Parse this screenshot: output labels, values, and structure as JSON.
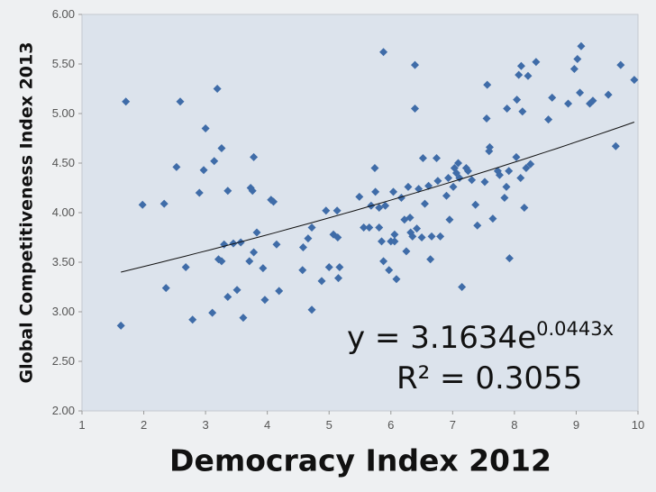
{
  "chart_data": {
    "type": "scatter",
    "x_label": "Democracy Index 2012",
    "y_label": "Global Competitiveness Index 2013",
    "equation": "y = 3.1634e",
    "equation_exponent": "0.0443x",
    "r_squared_label": "R² = 0.3055",
    "trendline": {
      "a": 3.1634,
      "b": 0.0443
    },
    "color": "#3f6ca8",
    "xlim": [
      1,
      10
    ],
    "ylim": [
      2,
      6
    ],
    "xticks": [
      1,
      2,
      3,
      4,
      5,
      6,
      7,
      8,
      9,
      10
    ],
    "yticks": [
      {
        "value": 2,
        "label": "2.00"
      },
      {
        "value": 2.5,
        "label": "2.50"
      },
      {
        "value": 3,
        "label": "3.00"
      },
      {
        "value": 3.5,
        "label": "3.50"
      },
      {
        "value": 4,
        "label": "4.00"
      },
      {
        "value": 4.5,
        "label": "4.50"
      },
      {
        "value": 5,
        "label": "5.00"
      },
      {
        "value": 5.5,
        "label": "5.50"
      },
      {
        "value": 6,
        "label": "6.00"
      }
    ],
    "x": [
      1.63,
      1.71,
      1.98,
      2.33,
      2.36,
      2.53,
      2.59,
      2.68,
      2.79,
      2.9,
      2.97,
      3.0,
      3.11,
      3.14,
      3.19,
      3.21,
      3.26,
      3.26,
      3.3,
      3.36,
      3.36,
      3.45,
      3.51,
      3.57,
      3.61,
      3.71,
      3.73,
      3.76,
      3.78,
      3.78,
      3.83,
      3.93,
      3.96,
      4.06,
      4.1,
      4.15,
      4.19,
      4.57,
      4.58,
      4.66,
      4.72,
      4.72,
      4.88,
      4.95,
      5.0,
      5.07,
      5.13,
      5.14,
      5.15,
      5.17,
      5.49,
      5.56,
      5.65,
      5.68,
      5.74,
      5.75,
      5.81,
      5.81,
      5.85,
      5.88,
      5.88,
      5.91,
      5.97,
      6.0,
      6.04,
      6.06,
      6.06,
      6.09,
      6.17,
      6.22,
      6.25,
      6.28,
      6.31,
      6.32,
      6.35,
      6.39,
      6.39,
      6.42,
      6.45,
      6.5,
      6.52,
      6.55,
      6.61,
      6.64,
      6.66,
      6.74,
      6.76,
      6.8,
      6.9,
      6.93,
      6.95,
      7.01,
      7.03,
      7.06,
      7.09,
      7.11,
      7.15,
      7.22,
      7.25,
      7.31,
      7.37,
      7.4,
      7.52,
      7.55,
      7.56,
      7.59,
      7.6,
      7.65,
      7.73,
      7.76,
      7.84,
      7.87,
      7.88,
      7.91,
      7.92,
      8.03,
      8.04,
      8.07,
      8.1,
      8.11,
      8.13,
      8.16,
      8.19,
      8.22,
      8.26,
      8.35,
      8.55,
      8.61,
      8.87,
      8.97,
      9.02,
      9.08,
      9.06,
      9.22,
      9.27,
      9.52,
      9.64,
      9.72,
      9.94
    ],
    "y": [
      2.86,
      5.12,
      4.08,
      4.09,
      3.24,
      4.46,
      5.12,
      3.45,
      2.92,
      4.2,
      4.43,
      4.85,
      2.99,
      4.52,
      5.25,
      3.53,
      4.65,
      3.51,
      3.68,
      4.22,
      3.15,
      3.69,
      3.22,
      3.7,
      2.94,
      3.51,
      4.25,
      4.22,
      4.56,
      3.6,
      3.8,
      3.44,
      3.12,
      4.13,
      4.11,
      3.68,
      3.21,
      3.42,
      3.65,
      3.74,
      3.02,
      3.85,
      3.31,
      4.02,
      3.45,
      3.78,
      4.02,
      3.75,
      3.34,
      3.45,
      4.16,
      3.85,
      3.85,
      4.07,
      4.45,
      4.21,
      4.05,
      3.85,
      3.71,
      5.62,
      3.51,
      4.07,
      3.42,
      3.71,
      4.21,
      3.71,
      3.78,
      3.33,
      4.15,
      3.93,
      3.61,
      4.26,
      3.95,
      3.8,
      3.76,
      5.49,
      5.05,
      3.84,
      4.24,
      3.75,
      4.55,
      4.09,
      4.27,
      3.53,
      3.76,
      4.55,
      4.32,
      3.76,
      4.17,
      4.35,
      3.93,
      4.26,
      4.45,
      4.4,
      4.5,
      4.35,
      3.25,
      4.45,
      4.42,
      4.33,
      4.08,
      3.87,
      4.31,
      4.95,
      5.29,
      4.62,
      4.66,
      3.94,
      4.42,
      4.38,
      4.15,
      4.26,
      5.05,
      4.42,
      3.54,
      4.56,
      5.14,
      5.39,
      4.35,
      5.48,
      5.02,
      4.05,
      4.45,
      5.38,
      4.49,
      5.52,
      4.94,
      5.16,
      5.1,
      5.45,
      5.55,
      5.68,
      5.21,
      5.1,
      5.13,
      5.19,
      4.67,
      5.49,
      5.34
    ]
  }
}
